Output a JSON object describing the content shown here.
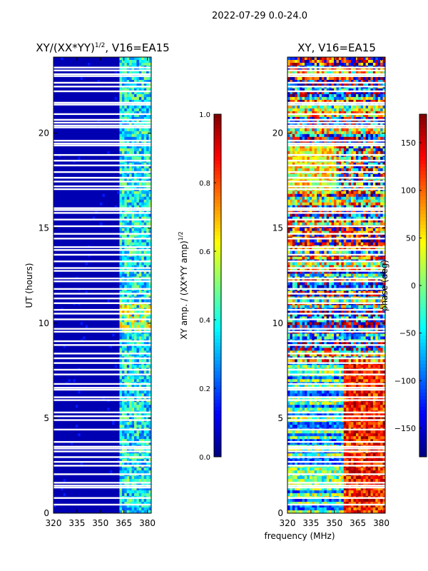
{
  "figure_title": "2022-07-29 0.0-24.0",
  "shared_xlabel": "frequency (MHz)",
  "chart_data": [
    {
      "type": "heatmap",
      "title": "XY/(XX*YY)",
      "title_exponent": "1/2",
      "title_suffix": ", V16=EA15",
      "xlabel": "",
      "ylabel": "UT (hours)",
      "xlim": [
        320,
        382.5
      ],
      "ylim": [
        0,
        24
      ],
      "xticks": [
        320,
        335,
        350,
        365,
        380
      ],
      "yticks": [
        0,
        5,
        10,
        15,
        20
      ],
      "colormap": "jet",
      "colorbar": {
        "label": "XY amp. / (XX*YY amp)",
        "label_exponent": "1/2",
        "range": [
          0.0,
          1.0
        ],
        "ticks": [
          "0.0",
          "0.2",
          "0.4",
          "0.6",
          "0.8",
          "1.0"
        ]
      },
      "description_bands": [
        {
          "x_range": [
            320,
            362
          ],
          "value_level": 0.05
        },
        {
          "x_range": [
            362,
            382.5
          ],
          "value_level": 0.4
        }
      ]
    },
    {
      "type": "heatmap",
      "title": "XY, V16=EA15",
      "xlabel": "",
      "ylabel": "",
      "xlim": [
        320,
        382.5
      ],
      "ylim": [
        0,
        24
      ],
      "xticks": [
        320,
        335,
        350,
        365,
        380
      ],
      "yticks": [
        0,
        5,
        10,
        15,
        20
      ],
      "colormap": "jet",
      "colorbar": {
        "label": "phase (deg)",
        "range": [
          -180,
          180
        ],
        "ticks": [
          "150",
          "100",
          "50",
          "0",
          "−50",
          "−100",
          "−150"
        ]
      }
    }
  ],
  "gap_hours": [
    0.45,
    0.8,
    1.35,
    1.45,
    1.6,
    2.05,
    2.5,
    2.7,
    2.95,
    3.25,
    3.4,
    3.5,
    3.75,
    4.4,
    4.9,
    5.1,
    5.3,
    5.95,
    6.1,
    6.5,
    6.6,
    6.8,
    7.3,
    7.55,
    7.9,
    8.15,
    8.4,
    8.85,
    9.05,
    9.55,
    9.7,
    10.2,
    10.5,
    10.7,
    11.05,
    11.3,
    11.55,
    11.8,
    12.2,
    12.35,
    12.75,
    12.9,
    13.25,
    13.6,
    13.85,
    14.0,
    14.45,
    14.7,
    15.1,
    15.45,
    15.8,
    15.95,
    16.05,
    17.05,
    17.2,
    17.45,
    17.65,
    17.95,
    18.3,
    18.55,
    18.85,
    19.35,
    19.45,
    19.6,
    20.3,
    20.4,
    20.55,
    20.7,
    21.0,
    21.5,
    21.6,
    22.2,
    22.45,
    22.65,
    23.0,
    23.1,
    23.3,
    23.45
  ]
}
